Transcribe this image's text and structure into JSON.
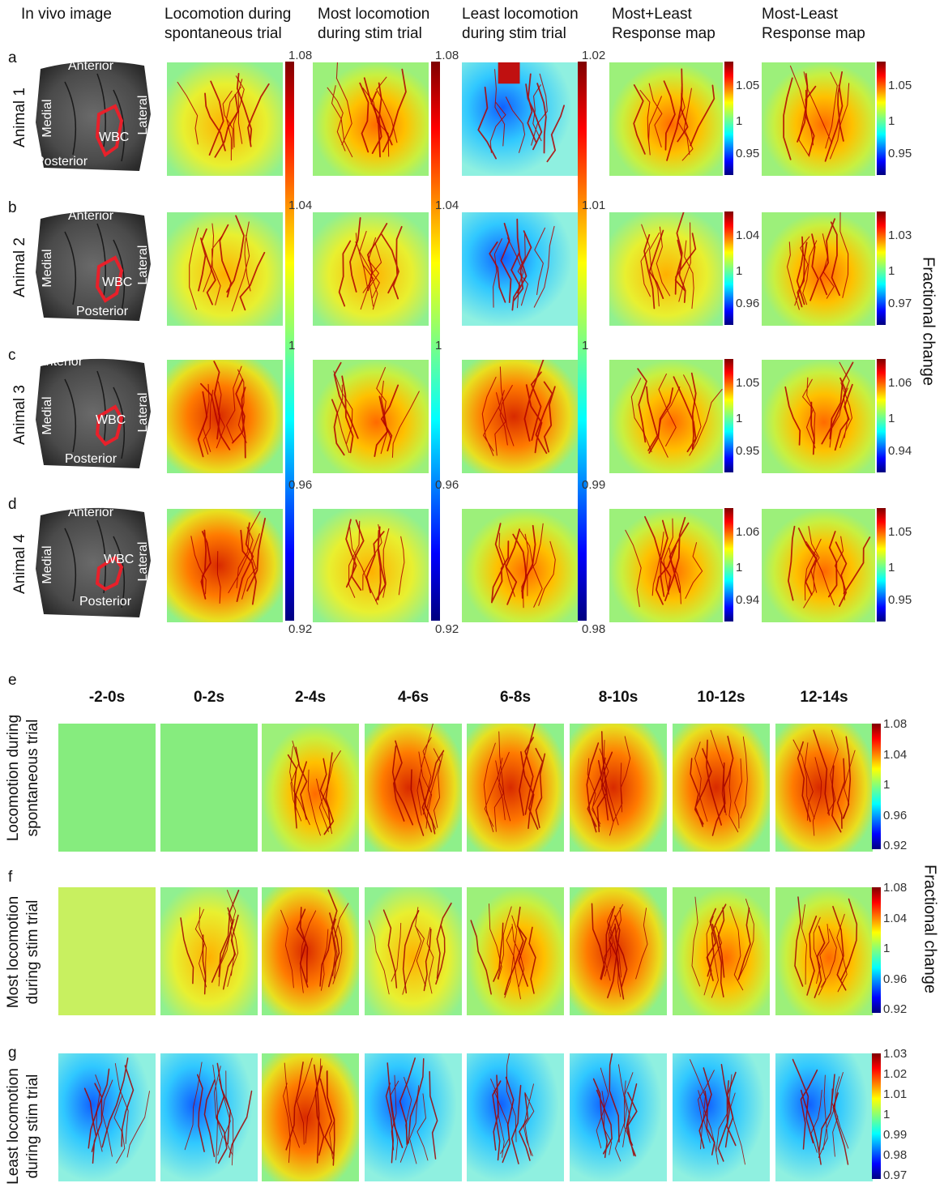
{
  "top": {
    "column_headers": [
      "In vivo image",
      "Locomotion during\nspontaneous trial",
      "Most locomotion\nduring stim trial",
      "Least locomotion\nduring stim trial",
      "Most+Least\nResponse map",
      "Most-Least\nResponse map"
    ],
    "rows": [
      {
        "letter": "a",
        "animal": "Animal 1",
        "wbc": "WBC",
        "mpl_ticks": [
          "1.05",
          "1",
          "0.95"
        ],
        "mml_ticks": [
          "1.05",
          "1",
          "0.95"
        ]
      },
      {
        "letter": "b",
        "animal": "Animal 2",
        "wbc": "WBC",
        "mpl_ticks": [
          "1.04",
          "1",
          "0.96"
        ],
        "mml_ticks": [
          "1.03",
          "1",
          "0.97"
        ]
      },
      {
        "letter": "c",
        "animal": "Animal 3",
        "wbc": "WBC",
        "mpl_ticks": [
          "1.05",
          "1",
          "0.95"
        ],
        "mml_ticks": [
          "1.06",
          "1",
          "0.94"
        ]
      },
      {
        "letter": "d",
        "animal": "Animal 4",
        "wbc": "WBC",
        "mpl_ticks": [
          "1.06",
          "1",
          "0.94"
        ],
        "mml_ticks": [
          "1.05",
          "1",
          "0.95"
        ]
      }
    ],
    "orientation": {
      "anterior": "Anterior",
      "posterior": "Posterior",
      "medial": "Medial",
      "lateral": "Lateral"
    },
    "colorbar_spont": [
      "1.08",
      "1.04",
      "1",
      "0.96",
      "0.92"
    ],
    "colorbar_most": [
      "1.08",
      "1.04",
      "1",
      "0.96",
      "0.92"
    ],
    "colorbar_least": [
      "1.02",
      "1.01",
      "1",
      "0.99",
      "0.98"
    ],
    "side_label": "Fractional change"
  },
  "bottom": {
    "letters": [
      "e",
      "f",
      "g"
    ],
    "time_labels": [
      "-2-0s",
      "0-2s",
      "2-4s",
      "4-6s",
      "6-8s",
      "8-10s",
      "10-12s",
      "12-14s"
    ],
    "row_labels": [
      "Locomotion during\nspontaneous trial",
      "Most locomotion\nduring stim trial",
      "Least locomotion\nduring stim trial"
    ],
    "colorbar_e": [
      "1.08",
      "1.04",
      "1",
      "0.96",
      "0.92"
    ],
    "colorbar_f": [
      "1.08",
      "1.04",
      "1",
      "0.96",
      "0.92"
    ],
    "colorbar_g": [
      "1.03",
      "1.02",
      "1.01",
      "1",
      "0.99",
      "0.98",
      "0.97"
    ],
    "side_label": "Fractional change"
  },
  "colors": {
    "jet_low": "#00008f",
    "jet_mid": "#7fff7f",
    "jet_high": "#800000",
    "roi": "#e8202a"
  }
}
